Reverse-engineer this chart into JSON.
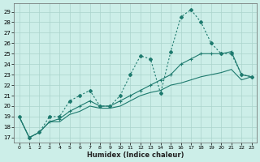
{
  "xlabel": "Humidex (Indice chaleur)",
  "bg_color": "#cceee8",
  "line_color": "#1e7a6e",
  "grid_color": "#aad4cc",
  "xlim": [
    -0.5,
    23.5
  ],
  "ylim": [
    16.5,
    29.8
  ],
  "xticks": [
    0,
    1,
    2,
    3,
    4,
    5,
    6,
    7,
    8,
    9,
    10,
    11,
    12,
    13,
    14,
    15,
    16,
    17,
    18,
    19,
    20,
    21,
    22,
    23
  ],
  "yticks": [
    17,
    18,
    19,
    20,
    21,
    22,
    23,
    24,
    25,
    26,
    27,
    28,
    29
  ],
  "series1_dotted": [
    19,
    17,
    17.5,
    19,
    19,
    20.5,
    21,
    21.5,
    20,
    20,
    21,
    23,
    24.8,
    24.5,
    21.2,
    25.2,
    28.5,
    29.2,
    28,
    26,
    25,
    25,
    23,
    22.8
  ],
  "series2_solid_upper": [
    19,
    17,
    17.5,
    18.5,
    18.8,
    19.5,
    20,
    20.5,
    20,
    20,
    20.5,
    21,
    21.5,
    22,
    22.5,
    23,
    24,
    24.5,
    25,
    25,
    25,
    25.2,
    23,
    22.8
  ],
  "series3_solid_lower": [
    19,
    17,
    17.5,
    18.5,
    18.5,
    19.2,
    19.5,
    20,
    19.8,
    19.8,
    20,
    20.5,
    21,
    21.3,
    21.5,
    22,
    22.2,
    22.5,
    22.8,
    23,
    23.2,
    23.5,
    22.5,
    22.8
  ]
}
